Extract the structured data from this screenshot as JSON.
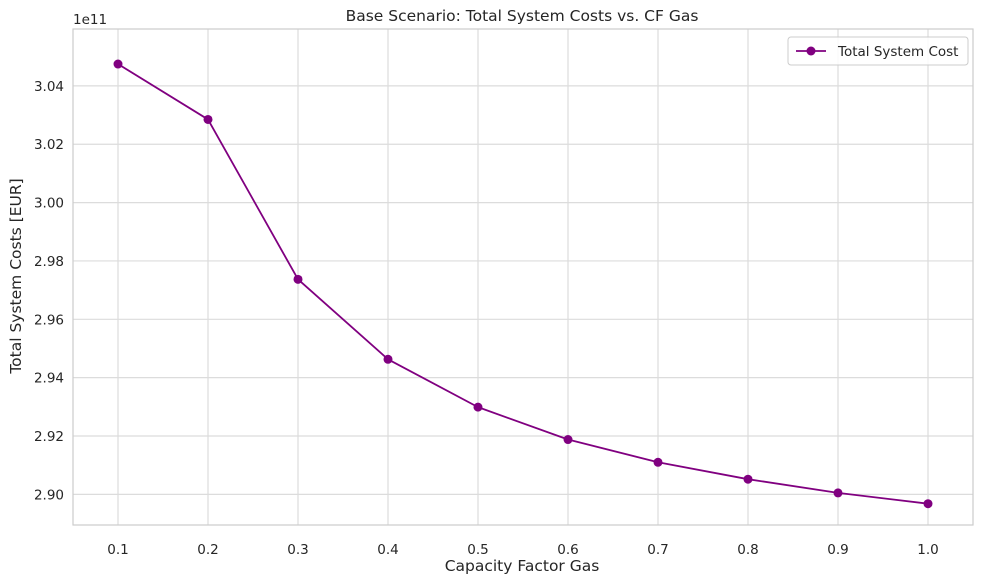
{
  "chart_data": {
    "type": "line",
    "title": "Base Scenario: Total System Costs vs. CF Gas",
    "xlabel": "Capacity Factor Gas",
    "ylabel": "Total System Costs [EUR]",
    "y_offset_label": "1e11",
    "y_scale_factor": 100000000000.0,
    "xlim": [
      0.05,
      1.05
    ],
    "ylim": [
      2.8895,
      3.0595
    ],
    "x_ticks": [
      "0.1",
      "0.2",
      "0.3",
      "0.4",
      "0.5",
      "0.6",
      "0.7",
      "0.8",
      "0.9",
      "1.0"
    ],
    "y_ticks": [
      "2.90",
      "2.92",
      "2.94",
      "2.96",
      "2.98",
      "3.00",
      "3.02",
      "3.04"
    ],
    "grid": true,
    "legend_position": "top-right",
    "series": [
      {
        "name": "Total System Cost",
        "color": "#800080",
        "marker": "circle",
        "x": [
          0.1,
          0.2,
          0.3,
          0.4,
          0.5,
          0.6,
          0.7,
          0.8,
          0.9,
          1.0
        ],
        "y": [
          3.0475,
          3.0285,
          2.9737,
          2.9463,
          2.9299,
          2.9188,
          2.911,
          2.9052,
          2.9005,
          2.8968
        ]
      }
    ]
  }
}
